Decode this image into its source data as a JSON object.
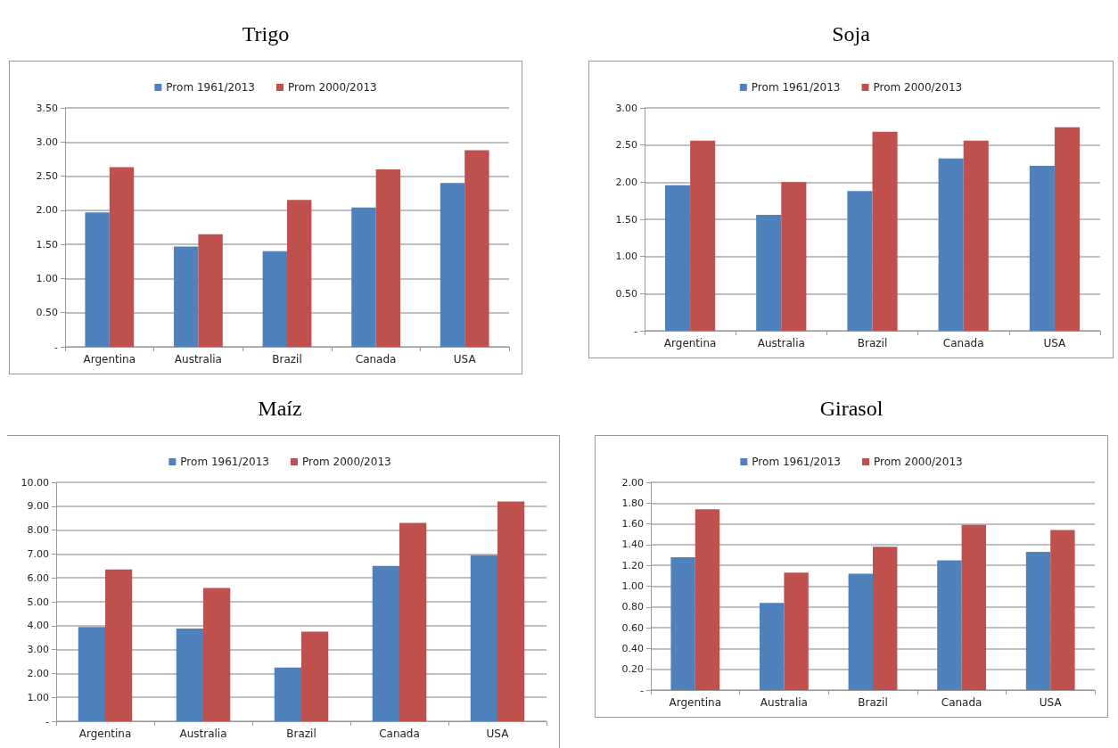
{
  "chart_data": [
    {
      "type": "bar",
      "title": "Trigo",
      "categories": [
        "Argentina",
        "Australia",
        "Brazil",
        "Canada",
        "USA"
      ],
      "series": [
        {
          "name": "Prom 1961/2013",
          "color": "#4f81bd",
          "values": [
            1.97,
            1.47,
            1.4,
            2.04,
            2.4
          ]
        },
        {
          "name": "Prom 2000/2013",
          "color": "#c0504d",
          "values": [
            2.63,
            1.65,
            2.15,
            2.6,
            2.88
          ]
        }
      ],
      "ylim": [
        0,
        3.5
      ],
      "yticks": [
        {
          "value": 0,
          "label": "-"
        },
        {
          "value": 0.5,
          "label": "0.50"
        },
        {
          "value": 1,
          "label": "1.00"
        },
        {
          "value": 1.5,
          "label": "1.50"
        },
        {
          "value": 2,
          "label": "2.00"
        },
        {
          "value": 2.5,
          "label": "2.50"
        },
        {
          "value": 3,
          "label": "3.00"
        },
        {
          "value": 3.5,
          "label": "3.50"
        }
      ],
      "grid": "y",
      "legend": "top"
    },
    {
      "type": "bar",
      "title": "Soja",
      "categories": [
        "Argentina",
        "Australia",
        "Brazil",
        "Canada",
        "USA"
      ],
      "series": [
        {
          "name": "Prom 1961/2013",
          "color": "#4f81bd",
          "values": [
            1.96,
            1.56,
            1.88,
            2.32,
            2.22
          ]
        },
        {
          "name": "Prom 2000/2013",
          "color": "#c0504d",
          "values": [
            2.56,
            2.0,
            2.68,
            2.56,
            2.74
          ]
        }
      ],
      "ylim": [
        0,
        3
      ],
      "yticks": [
        {
          "value": 0,
          "label": "-"
        },
        {
          "value": 0.5,
          "label": "0.50"
        },
        {
          "value": 1,
          "label": "1.00"
        },
        {
          "value": 1.5,
          "label": "1.50"
        },
        {
          "value": 2,
          "label": "2.00"
        },
        {
          "value": 2.5,
          "label": "2.50"
        },
        {
          "value": 3,
          "label": "3.00"
        }
      ],
      "grid": "y",
      "legend": "top"
    },
    {
      "type": "bar",
      "title": "Maíz",
      "categories": [
        "Argentina",
        "Australia",
        "Brazil",
        "Canada",
        "USA"
      ],
      "series": [
        {
          "name": "Prom 1961/2013",
          "color": "#4f81bd",
          "values": [
            3.95,
            3.88,
            2.25,
            6.5,
            6.95
          ]
        },
        {
          "name": "Prom 2000/2013",
          "color": "#c0504d",
          "values": [
            6.35,
            5.58,
            3.75,
            8.3,
            9.2
          ]
        }
      ],
      "ylim": [
        0,
        10
      ],
      "yticks": [
        {
          "value": 0,
          "label": "-"
        },
        {
          "value": 1,
          "label": "1.00"
        },
        {
          "value": 2,
          "label": "2.00"
        },
        {
          "value": 3,
          "label": "3.00"
        },
        {
          "value": 4,
          "label": "4.00"
        },
        {
          "value": 5,
          "label": "5.00"
        },
        {
          "value": 6,
          "label": "6.00"
        },
        {
          "value": 7,
          "label": "7.00"
        },
        {
          "value": 8,
          "label": "8.00"
        },
        {
          "value": 9,
          "label": "9.00"
        },
        {
          "value": 10,
          "label": "10.00"
        }
      ],
      "grid": "y",
      "legend": "top"
    },
    {
      "type": "bar",
      "title": "Girasol",
      "categories": [
        "Argentina",
        "Australia",
        "Brazil",
        "Canada",
        "USA"
      ],
      "series": [
        {
          "name": "Prom 1961/2013",
          "color": "#4f81bd",
          "values": [
            1.28,
            0.84,
            1.12,
            1.25,
            1.33
          ]
        },
        {
          "name": "Prom 2000/2013",
          "color": "#c0504d",
          "values": [
            1.74,
            1.13,
            1.38,
            1.59,
            1.54
          ]
        }
      ],
      "ylim": [
        0,
        2
      ],
      "yticks": [
        {
          "value": 0,
          "label": "-"
        },
        {
          "value": 0.2,
          "label": "0.20"
        },
        {
          "value": 0.4,
          "label": "0.40"
        },
        {
          "value": 0.6,
          "label": "0.60"
        },
        {
          "value": 0.8,
          "label": "0.80"
        },
        {
          "value": 1,
          "label": "1.00"
        },
        {
          "value": 1.2,
          "label": "1.20"
        },
        {
          "value": 1.4,
          "label": "1.40"
        },
        {
          "value": 1.6,
          "label": "1.60"
        },
        {
          "value": 1.8,
          "label": "1.80"
        },
        {
          "value": 2,
          "label": "2.00"
        }
      ],
      "grid": "y",
      "legend": "top"
    }
  ]
}
